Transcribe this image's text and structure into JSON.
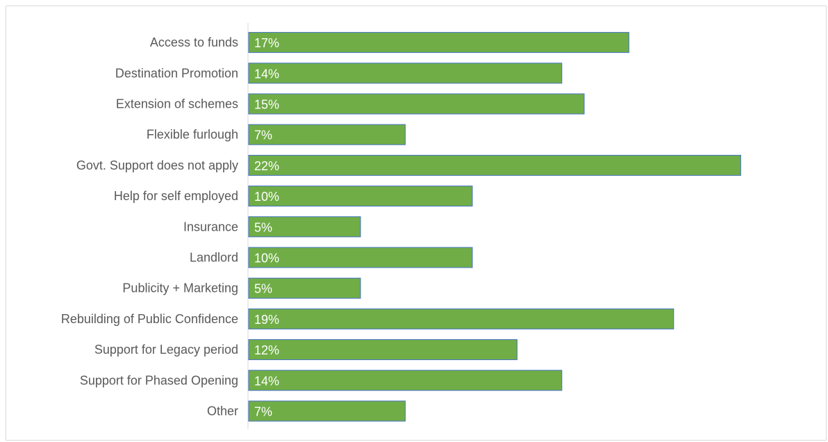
{
  "chart_data": {
    "type": "bar",
    "orientation": "horizontal",
    "categories": [
      "Access to funds",
      "Destination Promotion",
      "Extension of schemes",
      "Flexible furlough",
      "Govt. Support does not apply",
      "Help for self employed",
      "Insurance",
      "Landlord",
      "Publicity + Marketing",
      "Rebuilding of Public Confidence",
      "Support for Legacy period",
      "Support for Phased Opening",
      "Other"
    ],
    "values": [
      17,
      14,
      15,
      7,
      22,
      10,
      5,
      10,
      5,
      19,
      12,
      14,
      7
    ],
    "data_labels": [
      "17%",
      "14%",
      "15%",
      "7%",
      "22%",
      "10%",
      "5%",
      "10%",
      "5%",
      "19%",
      "12%",
      "14%",
      "7%"
    ],
    "value_unit": "%",
    "title": "",
    "xlabel": "",
    "ylabel": "",
    "xlim": [
      0,
      27
    ],
    "grid": false,
    "legend": "none",
    "colors": {
      "bar_fill": "#70ad47",
      "bar_outline": "#4472c4",
      "axis_line": "#d9d9d9",
      "category_text": "#595959",
      "data_label_text": "#ffffff",
      "frame_border": "#d9d9d9"
    }
  }
}
